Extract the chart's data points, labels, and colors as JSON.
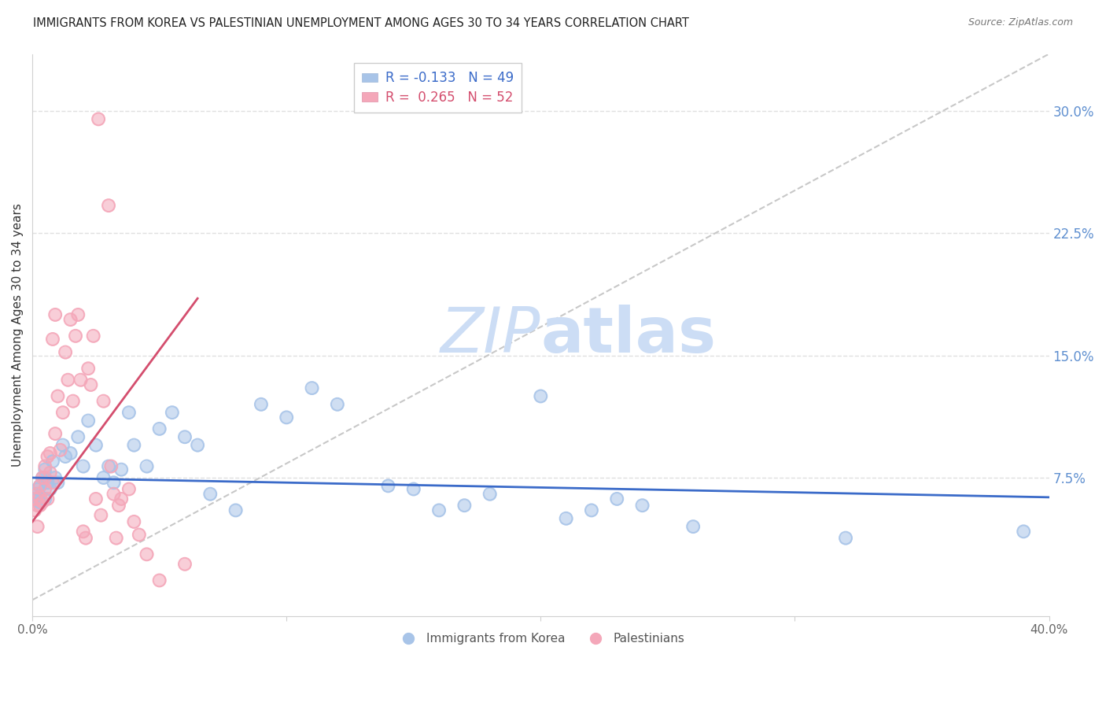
{
  "title": "IMMIGRANTS FROM KOREA VS PALESTINIAN UNEMPLOYMENT AMONG AGES 30 TO 34 YEARS CORRELATION CHART",
  "source": "Source: ZipAtlas.com",
  "ylabel": "Unemployment Among Ages 30 to 34 years",
  "xlim": [
    0,
    0.4
  ],
  "ylim": [
    -0.01,
    0.335
  ],
  "yticks_right": [
    0.075,
    0.15,
    0.225,
    0.3
  ],
  "yticklabels_right": [
    "7.5%",
    "15.0%",
    "22.5%",
    "30.0%"
  ],
  "korea_R": -0.133,
  "korea_N": 49,
  "pal_R": 0.265,
  "pal_N": 52,
  "korea_color": "#a8c4e8",
  "pal_color": "#f4a7b9",
  "korea_line_color": "#3b6bc9",
  "pal_line_color": "#d44e6e",
  "ref_line_color": "#c8c8c8",
  "watermark_color": "#ccddf5",
  "background_color": "#ffffff",
  "grid_color": "#e0e0e0",
  "korea_line_x0": 0.0,
  "korea_line_y0": 0.075,
  "korea_line_x1": 0.4,
  "korea_line_y1": 0.063,
  "pal_line_x0": 0.0,
  "pal_line_y0": 0.048,
  "pal_line_x1": 0.065,
  "pal_line_y1": 0.185,
  "korea_x": [
    0.001,
    0.002,
    0.003,
    0.003,
    0.004,
    0.005,
    0.005,
    0.006,
    0.007,
    0.008,
    0.009,
    0.01,
    0.012,
    0.013,
    0.015,
    0.018,
    0.02,
    0.022,
    0.025,
    0.028,
    0.03,
    0.032,
    0.035,
    0.038,
    0.04,
    0.045,
    0.05,
    0.055,
    0.06,
    0.065,
    0.07,
    0.08,
    0.09,
    0.1,
    0.11,
    0.12,
    0.14,
    0.15,
    0.16,
    0.17,
    0.18,
    0.2,
    0.21,
    0.22,
    0.23,
    0.24,
    0.26,
    0.32,
    0.39
  ],
  "korea_y": [
    0.065,
    0.068,
    0.07,
    0.06,
    0.075,
    0.08,
    0.062,
    0.072,
    0.068,
    0.085,
    0.075,
    0.072,
    0.095,
    0.088,
    0.09,
    0.1,
    0.082,
    0.11,
    0.095,
    0.075,
    0.082,
    0.072,
    0.08,
    0.115,
    0.095,
    0.082,
    0.105,
    0.115,
    0.1,
    0.095,
    0.065,
    0.055,
    0.12,
    0.112,
    0.13,
    0.12,
    0.07,
    0.068,
    0.055,
    0.058,
    0.065,
    0.125,
    0.05,
    0.055,
    0.062,
    0.058,
    0.045,
    0.038,
    0.042
  ],
  "pal_x": [
    0.001,
    0.001,
    0.002,
    0.002,
    0.002,
    0.003,
    0.003,
    0.003,
    0.004,
    0.004,
    0.005,
    0.005,
    0.005,
    0.006,
    0.006,
    0.007,
    0.007,
    0.008,
    0.008,
    0.009,
    0.009,
    0.01,
    0.011,
    0.012,
    0.013,
    0.014,
    0.015,
    0.016,
    0.017,
    0.018,
    0.019,
    0.02,
    0.021,
    0.022,
    0.023,
    0.024,
    0.025,
    0.026,
    0.027,
    0.028,
    0.03,
    0.031,
    0.032,
    0.033,
    0.034,
    0.035,
    0.038,
    0.04,
    0.042,
    0.045,
    0.05,
    0.06
  ],
  "pal_y": [
    0.062,
    0.055,
    0.065,
    0.058,
    0.045,
    0.07,
    0.063,
    0.058,
    0.075,
    0.06,
    0.082,
    0.075,
    0.068,
    0.088,
    0.062,
    0.09,
    0.078,
    0.16,
    0.072,
    0.175,
    0.102,
    0.125,
    0.092,
    0.115,
    0.152,
    0.135,
    0.172,
    0.122,
    0.162,
    0.175,
    0.135,
    0.042,
    0.038,
    0.142,
    0.132,
    0.162,
    0.062,
    0.295,
    0.052,
    0.122,
    0.242,
    0.082,
    0.065,
    0.038,
    0.058,
    0.062,
    0.068,
    0.048,
    0.04,
    0.028,
    0.012,
    0.022
  ]
}
